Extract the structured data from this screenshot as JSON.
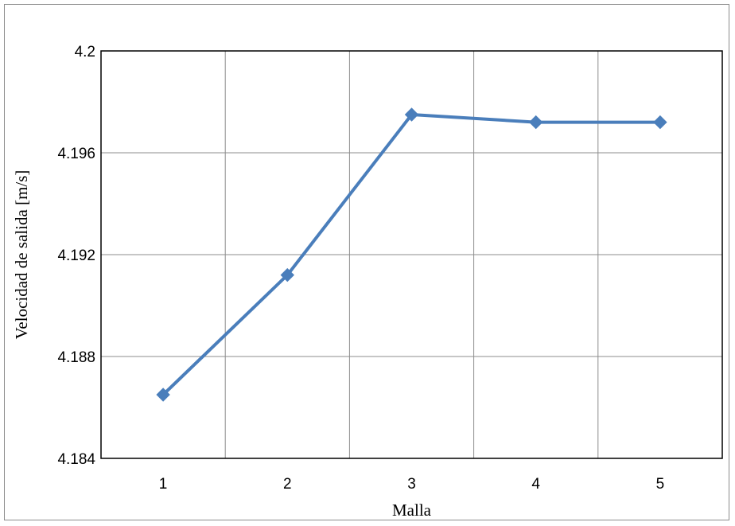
{
  "chart_data": {
    "type": "line",
    "xlabel": "Malla",
    "ylabel": "Velocidad de salida [m/s]",
    "categories": [
      "1",
      "2",
      "3",
      "4",
      "5"
    ],
    "series": [
      {
        "values": [
          4.1865,
          4.1912,
          4.1975,
          4.1972,
          4.1972
        ]
      }
    ],
    "ylim": [
      4.184,
      4.2
    ],
    "yticks": [
      "4.184",
      "4.188",
      "4.192",
      "4.196",
      "4.2"
    ],
    "grid": true,
    "legend": "none",
    "series_color": "#4a7ebb",
    "grid_color": "#8c8c8c"
  }
}
